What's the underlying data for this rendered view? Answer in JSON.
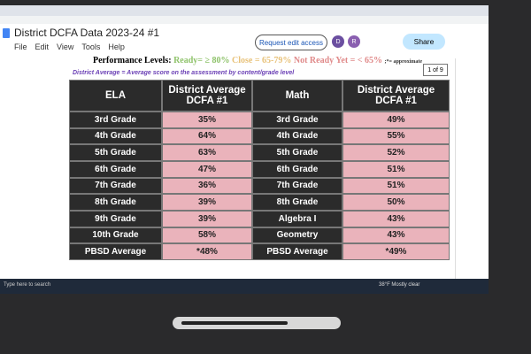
{
  "window": {
    "title": "District DCFA Data 2023-24 #1",
    "menu": [
      "File",
      "Edit",
      "View",
      "Tools",
      "Help"
    ],
    "request_button": "Request edit access",
    "share_button": "Share",
    "avatars": [
      "D",
      "R",
      "B"
    ]
  },
  "performance_levels": {
    "label": "Performance Levels:",
    "ready": "Ready= ≥ 80%",
    "close": "Close = 65-79%",
    "not_ready": "Not Ready Yet = < 65%",
    "note": ";*= approximate"
  },
  "district_average_note": "District Average = Average score on the assessment by content/grade level",
  "page_indicator": "1 of 9",
  "table": {
    "header": [
      "ELA",
      "District Average DCFA #1",
      "Math",
      "District Average DCFA #1"
    ],
    "rows": [
      [
        "3rd Grade",
        "35%",
        "3rd Grade",
        "49%"
      ],
      [
        "4th Grade",
        "64%",
        "4th Grade",
        "55%"
      ],
      [
        "5th Grade",
        "63%",
        "5th Grade",
        "52%"
      ],
      [
        "6th Grade",
        "47%",
        "6th Grade",
        "51%"
      ],
      [
        "7th Grade",
        "36%",
        "7th Grade",
        "51%"
      ],
      [
        "8th Grade",
        "39%",
        "8th Grade",
        "50%"
      ],
      [
        "9th Grade",
        "39%",
        "Algebra I",
        "43%"
      ],
      [
        "10th Grade",
        "58%",
        "Geometry",
        "43%"
      ],
      [
        "PBSD Average",
        "*48%",
        "PBSD Average",
        "*49%"
      ]
    ]
  },
  "taskbar": {
    "search": "Type here to search",
    "weather": "38°F Mostly clear"
  }
}
